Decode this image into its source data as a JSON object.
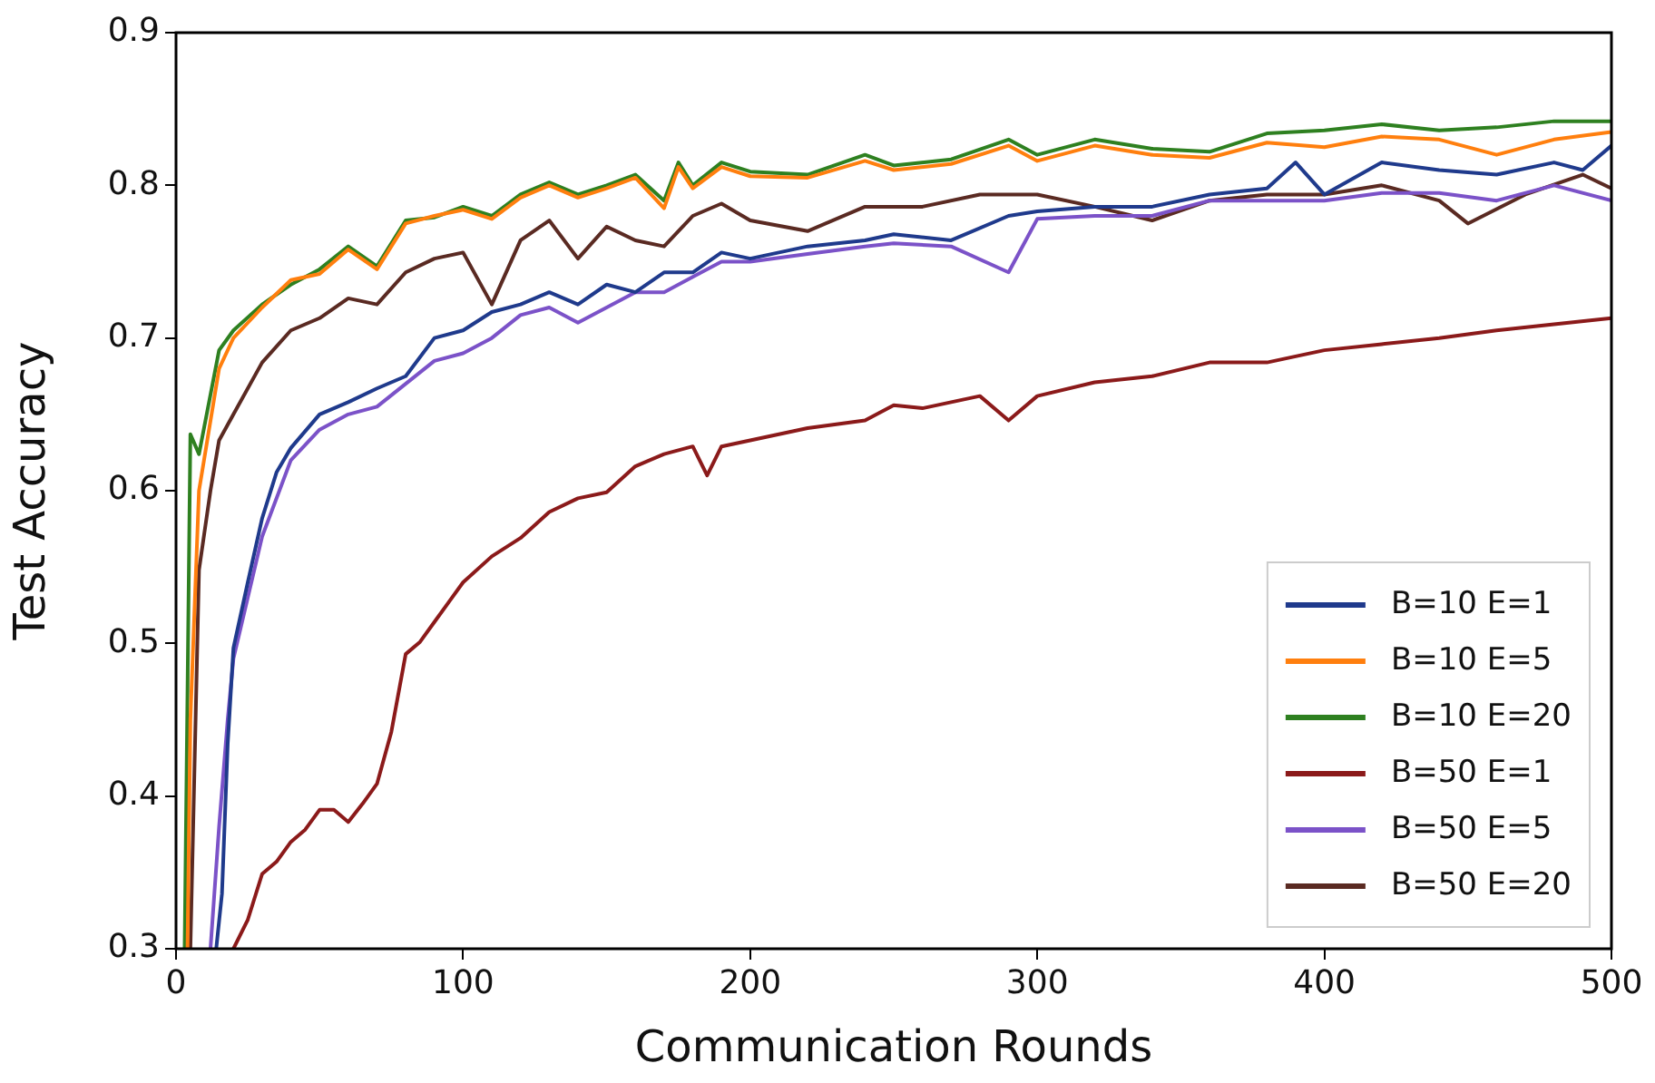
{
  "chart_data": {
    "type": "line",
    "xlabel": "Communication Rounds",
    "ylabel": "Test Accuracy",
    "xlim": [
      0,
      500
    ],
    "ylim": [
      0.3,
      0.9
    ],
    "xticks": [
      0,
      100,
      200,
      300,
      400,
      500
    ],
    "yticks": [
      0.3,
      0.4,
      0.5,
      0.6,
      0.7,
      0.8,
      0.9
    ],
    "grid": false,
    "legend": "bottom right",
    "marker": "none",
    "line_style": "solid",
    "series": [
      {
        "name": "B=10 E=1",
        "color": "#1f3a8c",
        "x": [
          14,
          16,
          18,
          20,
          25,
          30,
          35,
          40,
          50,
          60,
          70,
          80,
          90,
          100,
          110,
          120,
          130,
          140,
          150,
          160,
          170,
          180,
          190,
          200,
          220,
          240,
          250,
          270,
          290,
          300,
          320,
          340,
          360,
          380,
          390,
          400,
          420,
          440,
          460,
          480,
          490,
          500
        ],
        "values": [
          0.3,
          0.336,
          0.434,
          0.497,
          0.54,
          0.582,
          0.612,
          0.628,
          0.65,
          0.658,
          0.667,
          0.675,
          0.7,
          0.705,
          0.717,
          0.722,
          0.73,
          0.722,
          0.735,
          0.73,
          0.743,
          0.743,
          0.756,
          0.752,
          0.76,
          0.764,
          0.768,
          0.764,
          0.78,
          0.783,
          0.786,
          0.786,
          0.794,
          0.798,
          0.815,
          0.794,
          0.815,
          0.81,
          0.807,
          0.815,
          0.81,
          0.826
        ]
      },
      {
        "name": "B=10 E=5",
        "color": "#ff7f0e",
        "x": [
          4,
          5,
          8,
          15,
          20,
          30,
          40,
          50,
          60,
          70,
          80,
          90,
          100,
          110,
          120,
          130,
          140,
          150,
          160,
          170,
          175,
          180,
          190,
          200,
          220,
          240,
          250,
          270,
          290,
          300,
          320,
          340,
          360,
          380,
          400,
          420,
          440,
          460,
          480,
          500
        ],
        "values": [
          0.3,
          0.45,
          0.6,
          0.68,
          0.7,
          0.72,
          0.738,
          0.742,
          0.758,
          0.745,
          0.775,
          0.78,
          0.784,
          0.778,
          0.792,
          0.8,
          0.792,
          0.798,
          0.805,
          0.785,
          0.812,
          0.798,
          0.812,
          0.806,
          0.805,
          0.816,
          0.81,
          0.814,
          0.826,
          0.816,
          0.826,
          0.82,
          0.818,
          0.828,
          0.825,
          0.832,
          0.83,
          0.82,
          0.83,
          0.835
        ]
      },
      {
        "name": "B=10 E=20",
        "color": "#2e8020",
        "x": [
          3,
          5,
          8,
          15,
          20,
          30,
          40,
          50,
          60,
          70,
          80,
          90,
          100,
          110,
          120,
          130,
          140,
          150,
          160,
          170,
          175,
          180,
          190,
          200,
          220,
          240,
          250,
          270,
          290,
          300,
          320,
          340,
          360,
          380,
          400,
          420,
          440,
          460,
          480,
          500
        ],
        "values": [
          0.3,
          0.637,
          0.624,
          0.692,
          0.705,
          0.722,
          0.735,
          0.745,
          0.76,
          0.747,
          0.777,
          0.779,
          0.786,
          0.78,
          0.794,
          0.802,
          0.794,
          0.8,
          0.807,
          0.79,
          0.815,
          0.8,
          0.815,
          0.809,
          0.807,
          0.82,
          0.813,
          0.817,
          0.83,
          0.82,
          0.83,
          0.824,
          0.822,
          0.834,
          0.836,
          0.84,
          0.836,
          0.838,
          0.842,
          0.842
        ]
      },
      {
        "name": "B=50 E=1",
        "color": "#8b1a1a",
        "x": [
          20,
          25,
          30,
          35,
          40,
          45,
          50,
          55,
          60,
          65,
          70,
          75,
          80,
          85,
          90,
          95,
          100,
          110,
          120,
          130,
          140,
          150,
          160,
          170,
          180,
          185,
          190,
          200,
          220,
          240,
          250,
          260,
          280,
          290,
          300,
          320,
          340,
          360,
          380,
          400,
          420,
          440,
          460,
          480,
          500
        ],
        "values": [
          0.3,
          0.319,
          0.349,
          0.357,
          0.37,
          0.378,
          0.391,
          0.391,
          0.383,
          0.395,
          0.408,
          0.442,
          0.493,
          0.501,
          0.514,
          0.527,
          0.54,
          0.557,
          0.569,
          0.586,
          0.595,
          0.599,
          0.616,
          0.624,
          0.629,
          0.61,
          0.629,
          0.633,
          0.641,
          0.646,
          0.656,
          0.654,
          0.662,
          0.646,
          0.662,
          0.671,
          0.675,
          0.684,
          0.684,
          0.692,
          0.696,
          0.7,
          0.705,
          0.709,
          0.713
        ]
      },
      {
        "name": "B=50 E=5",
        "color": "#7b52c8",
        "x": [
          12,
          15,
          18,
          20,
          25,
          30,
          40,
          50,
          60,
          70,
          80,
          90,
          100,
          110,
          120,
          130,
          140,
          150,
          160,
          170,
          180,
          190,
          200,
          220,
          240,
          250,
          270,
          290,
          300,
          320,
          340,
          360,
          380,
          400,
          420,
          440,
          460,
          480,
          500
        ],
        "values": [
          0.3,
          0.38,
          0.45,
          0.49,
          0.53,
          0.57,
          0.62,
          0.64,
          0.65,
          0.655,
          0.67,
          0.685,
          0.69,
          0.7,
          0.715,
          0.72,
          0.71,
          0.72,
          0.73,
          0.73,
          0.74,
          0.75,
          0.75,
          0.755,
          0.76,
          0.762,
          0.76,
          0.743,
          0.778,
          0.78,
          0.78,
          0.79,
          0.79,
          0.79,
          0.795,
          0.795,
          0.79,
          0.8,
          0.79
        ]
      },
      {
        "name": "B=50 E=20",
        "color": "#5a2a22",
        "x": [
          5,
          8,
          12,
          15,
          20,
          30,
          40,
          50,
          60,
          70,
          80,
          90,
          100,
          110,
          120,
          130,
          140,
          150,
          160,
          170,
          180,
          190,
          200,
          220,
          240,
          250,
          260,
          280,
          300,
          320,
          340,
          360,
          380,
          400,
          420,
          440,
          450,
          470,
          490,
          500
        ],
        "values": [
          0.3,
          0.548,
          0.6,
          0.633,
          0.65,
          0.684,
          0.705,
          0.713,
          0.726,
          0.722,
          0.743,
          0.752,
          0.756,
          0.722,
          0.764,
          0.777,
          0.752,
          0.773,
          0.764,
          0.76,
          0.78,
          0.788,
          0.777,
          0.77,
          0.786,
          0.786,
          0.786,
          0.794,
          0.794,
          0.786,
          0.777,
          0.79,
          0.794,
          0.794,
          0.8,
          0.79,
          0.775,
          0.794,
          0.807,
          0.798
        ]
      }
    ]
  }
}
